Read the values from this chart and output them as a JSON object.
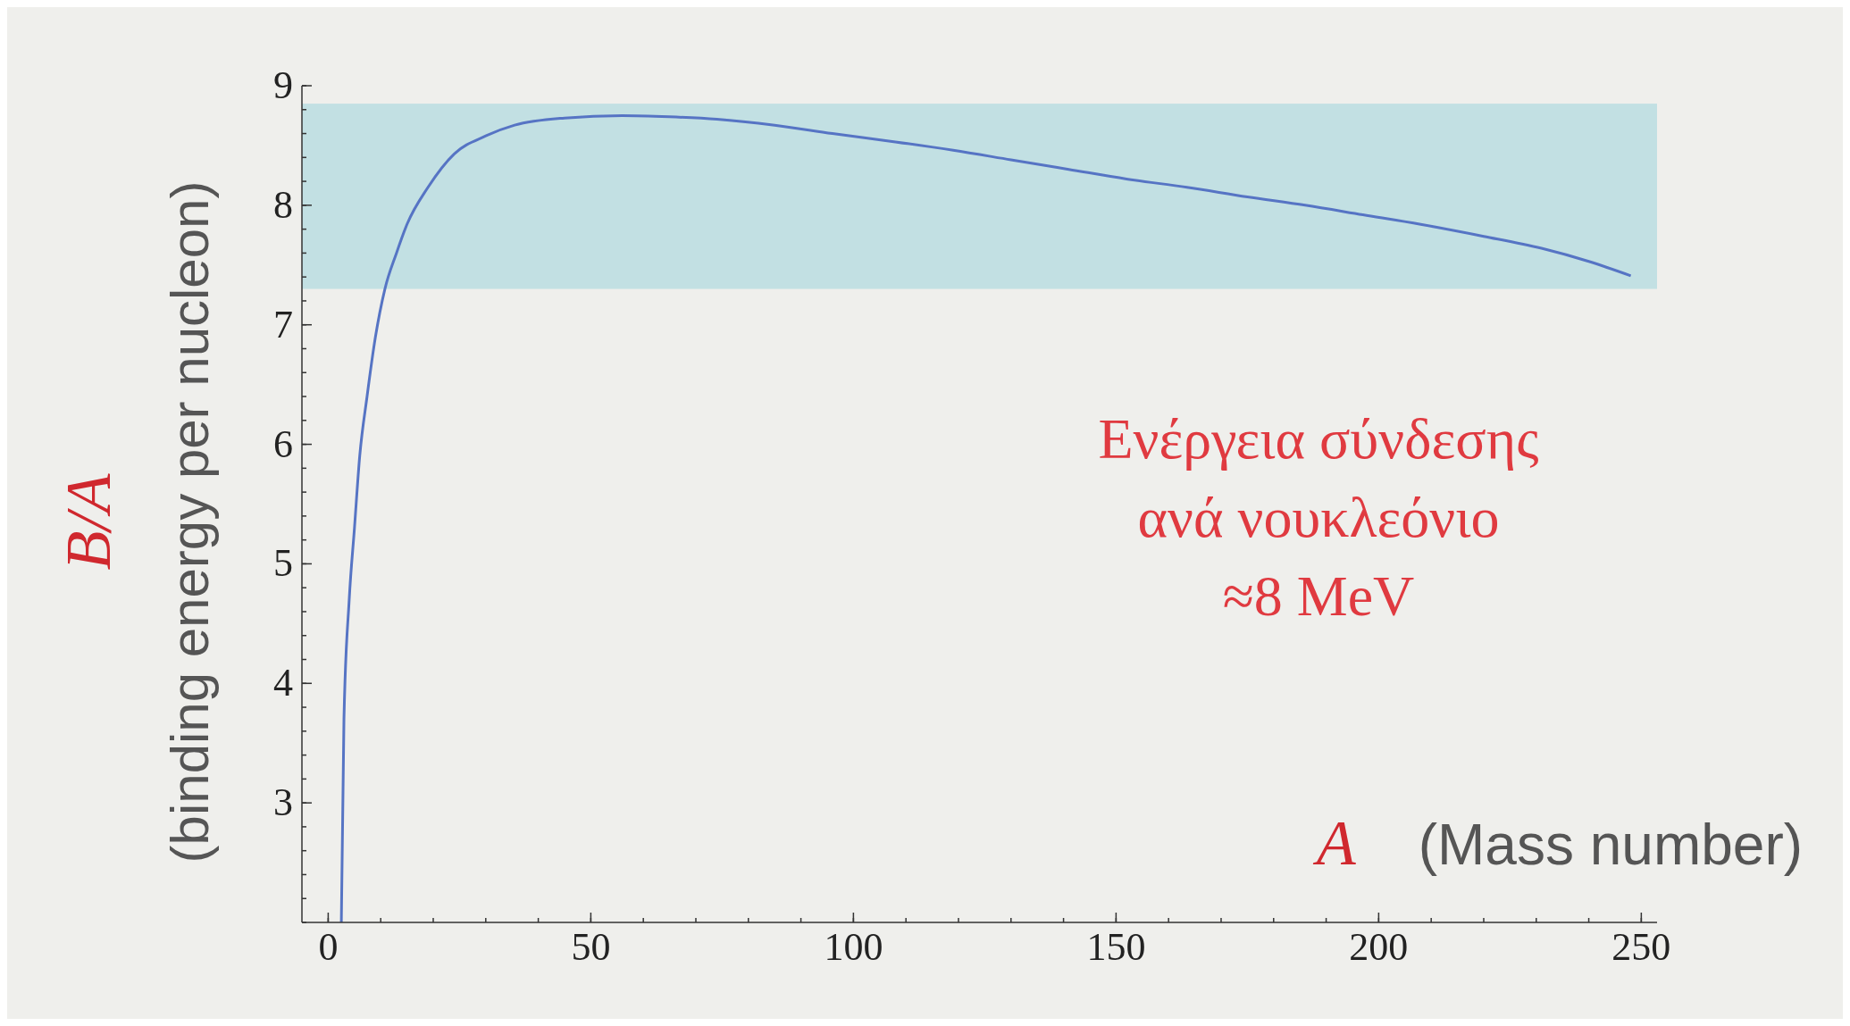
{
  "chart_data": {
    "type": "line",
    "xlabel": "A (Mass number)",
    "ylabel": "B/A (binding energy per nucleon)",
    "xlim": [
      -5,
      253
    ],
    "ylim": [
      2,
      9
    ],
    "xticks": [
      0,
      50,
      100,
      150,
      200,
      250
    ],
    "yticks": [
      3,
      4,
      5,
      6,
      7,
      8,
      9
    ],
    "grid": false,
    "marker": "none",
    "line_style": "solid",
    "series": [
      {
        "color": "#5674c4",
        "x": [
          2.5,
          3,
          4,
          5,
          6,
          7.4,
          9,
          10.8,
          13,
          15,
          19,
          24,
          30,
          35.5,
          45,
          56,
          65,
          74,
          85,
          96,
          108,
          119,
          130,
          141,
          152,
          163.5,
          175,
          186,
          197,
          208,
          220,
          231,
          240,
          248
        ],
        "values": [
          2,
          3.7,
          4.7,
          5.3,
          5.9,
          6.4,
          6.9,
          7.3,
          7.6,
          7.84,
          8.15,
          8.43,
          8.58,
          8.67,
          8.73,
          8.75,
          8.74,
          8.72,
          8.67,
          8.6,
          8.53,
          8.46,
          8.38,
          8.3,
          8.22,
          8.15,
          8.07,
          8.0,
          7.92,
          7.84,
          7.74,
          7.64,
          7.53,
          7.41
        ]
      }
    ],
    "bands": [
      {
        "axis": "y",
        "from": 7.3,
        "to": 8.85,
        "color": "#c2e0e3"
      }
    ],
    "annotations": [
      "Ενέργεια σύνδεσης\nανά νουκλεόνιο\n≈8 MeV"
    ]
  }
}
